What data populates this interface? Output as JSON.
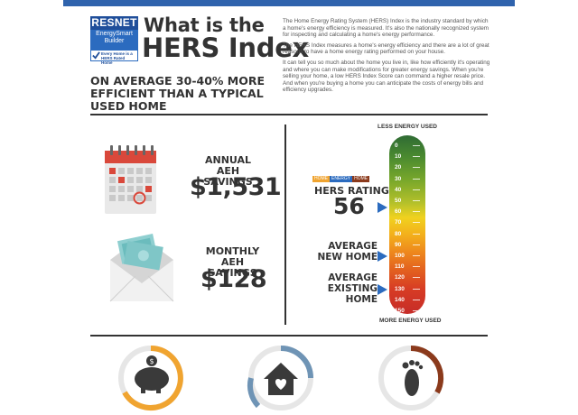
{
  "header": {
    "badge": {
      "org": "RESNET",
      "program": "EnergySmart Builder",
      "slogan": "Every Home is a HERS Rated Home"
    },
    "title_line1": "What is the",
    "title_line2": "HERS Index",
    "tagline": "ON AVERAGE 30-40% MORE EFFICIENT THAN A TYPICAL USED HOME",
    "intro_paragraphs": [
      "The Home Energy Rating System (HERS) Index is the industry standard by which a home's energy efficiency is measured. It's also the nationally recognized system for inspecting and calculating a home's energy performance.",
      "The HERS Index measures a home's energy efficiency and there are a lot of great reasons to have a home energy rating performed on your house.",
      "It can tell you so much about the home you live in, like how efficiently it's operating and where you can make modifications for greater energy savings. When you're selling your home, a low HERS Index Score can command a higher resale price. And when you're buying a home you can anticipate the costs of energy bills and efficiency upgrades."
    ]
  },
  "savings": {
    "annual_label": "ANNUAL AEH SAVINGS",
    "annual_amount": "$1,531",
    "monthly_label": "MONTHLY AEH SAVINGS",
    "monthly_amount": "$128",
    "calendar_icon": "calendar-icon",
    "envelope_icon": "money-envelope-icon"
  },
  "hers_scale": {
    "top_label": "LESS ENERGY USED",
    "bottom_label": "MORE ENERGY USED",
    "ticks": [
      "0",
      "10",
      "20",
      "30",
      "40",
      "50",
      "60",
      "70",
      "80",
      "90",
      "100",
      "110",
      "120",
      "130",
      "140",
      "150"
    ],
    "brand_words": [
      "HOME",
      "ENERGY",
      "HOME"
    ],
    "rating_label": "HERS RATING",
    "rating_value": "56",
    "avg_new_label": "AVERAGE NEW HOME",
    "avg_existing_label": "AVERAGE EXISTING HOME",
    "rating_score": 56,
    "avg_new_score": 100,
    "avg_existing_score": 130
  },
  "bottom_icons": [
    "piggy-bank-icon",
    "house-heart-icon",
    "footprint-icon"
  ],
  "colors": {
    "accent_blue": "#2b6bbf",
    "orange": "#f0a430",
    "steel_blue": "#6f94b5",
    "brown": "#8b3a1c"
  }
}
